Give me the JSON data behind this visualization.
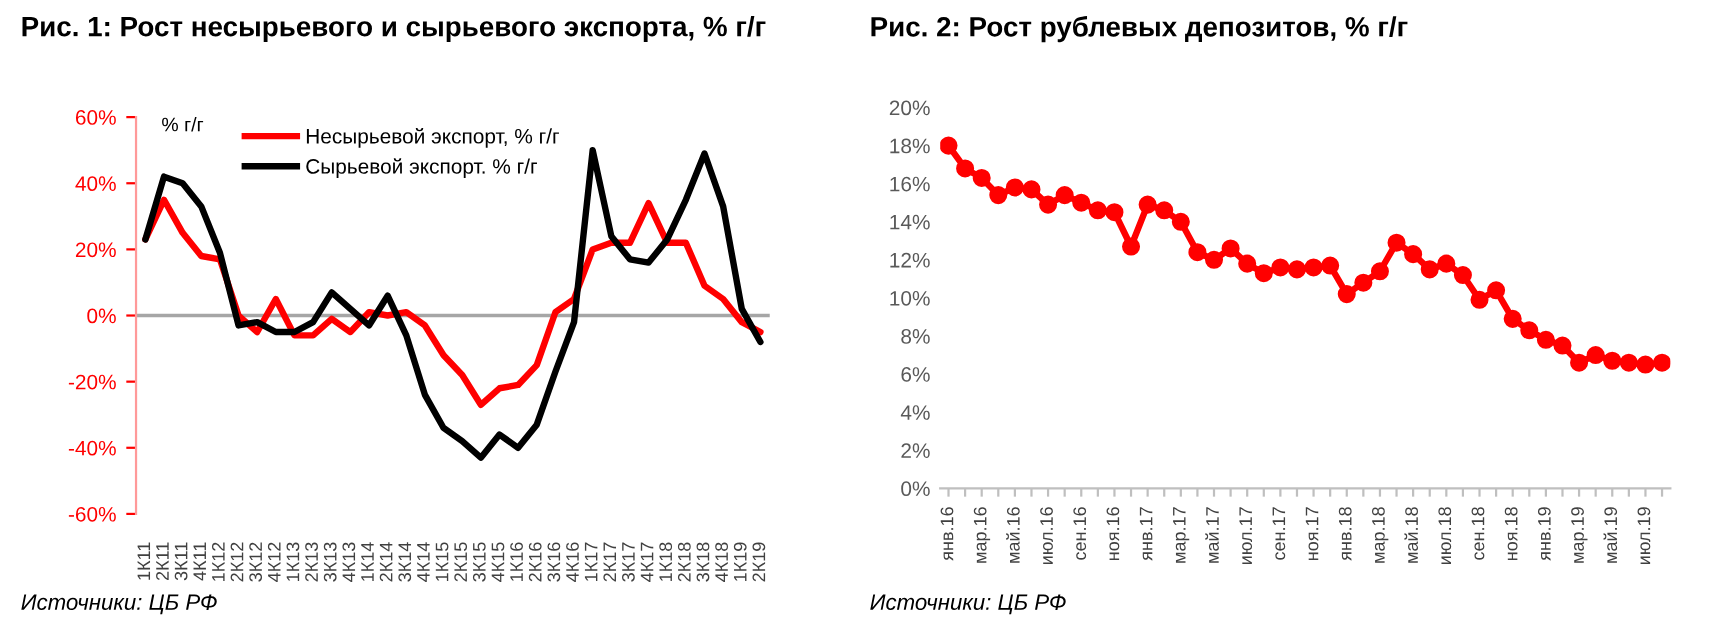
{
  "chart_data": [
    {
      "type": "line",
      "title": "Рис. 1: Рост несырьевого и сырьевого экспорта, % г/г",
      "ylabel": "% г/г",
      "categories": [
        "1К11",
        "2К11",
        "3К11",
        "4К11",
        "1К12",
        "2К12",
        "3К12",
        "4К12",
        "1К13",
        "2К13",
        "3К13",
        "4К13",
        "1К14",
        "2К14",
        "3К14",
        "4К14",
        "1К15",
        "2К15",
        "3К15",
        "4К15",
        "1К16",
        "2К16",
        "3К16",
        "4К16",
        "1К17",
        "2К17",
        "3К17",
        "4К17",
        "1К18",
        "2К18",
        "3К18",
        "4К18",
        "1К19",
        "2К19"
      ],
      "series": [
        {
          "name": "Несырьевой экспорт, % г/г",
          "color": "#ff0000",
          "values": [
            23,
            35,
            25,
            18,
            17,
            0,
            -5,
            5,
            -6,
            -6,
            -1,
            -5,
            1,
            0,
            1,
            -3,
            -12,
            -18,
            -27,
            -22,
            -21,
            -15,
            1,
            5,
            20,
            22,
            22,
            34,
            22,
            22,
            9,
            5,
            -2,
            -5
          ]
        },
        {
          "name": "Сырьевой экспорт. % г/г",
          "color": "#000000",
          "values": [
            23,
            42,
            40,
            33,
            19,
            -3,
            -2,
            -5,
            -5,
            -2,
            7,
            2,
            -3,
            6,
            -6,
            -24,
            -34,
            -38,
            -43,
            -36,
            -40,
            -33,
            -17,
            -2,
            50,
            24,
            17,
            16,
            23,
            35,
            49,
            33,
            2,
            -8
          ]
        }
      ],
      "ylim": [
        -60,
        60
      ],
      "yticks": [
        {
          "value": -60,
          "label": "-60%"
        },
        {
          "value": -40,
          "label": "-40%"
        },
        {
          "value": -20,
          "label": "-20%"
        },
        {
          "value": 0,
          "label": "0%"
        },
        {
          "value": 20,
          "label": "20%"
        },
        {
          "value": 40,
          "label": "40%"
        },
        {
          "value": 60,
          "label": "60%"
        }
      ],
      "ref_lines": [
        {
          "axis": "y",
          "value": 0,
          "color": "#a6a6a6"
        }
      ],
      "grid": false,
      "legend": "top",
      "marker": "none",
      "line_style": "solid",
      "annotations": [
        "Источники: ЦБ РФ"
      ]
    },
    {
      "type": "line",
      "title": "Рис. 2: Рост рублевых депозитов, % г/г",
      "categories": [
        "янв.16",
        null,
        "мар.16",
        null,
        "май.16",
        null,
        "июл.16",
        null,
        "сен.16",
        null,
        "ноя.16",
        null,
        "янв.17",
        null,
        "мар.17",
        null,
        "май.17",
        null,
        "июл.17",
        null,
        "сен.17",
        null,
        "ноя.17",
        null,
        "янв.18",
        null,
        "мар.18",
        null,
        "май.18",
        null,
        "июл.18",
        null,
        "сен.18",
        null,
        "ноя.18",
        null,
        "янв.19",
        null,
        "мар.19",
        null,
        "май.19",
        null,
        "июл.19",
        null
      ],
      "series": [
        {
          "color": "#ff0000",
          "values": [
            18.0,
            16.8,
            16.3,
            15.4,
            15.8,
            15.7,
            14.9,
            15.4,
            15.0,
            14.6,
            14.5,
            12.7,
            14.9,
            14.6,
            14.0,
            12.4,
            12.0,
            12.6,
            11.8,
            11.3,
            11.6,
            11.5,
            11.6,
            11.7,
            10.2,
            10.8,
            11.4,
            12.9,
            12.3,
            11.5,
            11.8,
            11.2,
            9.9,
            10.4,
            8.9,
            8.3,
            7.8,
            7.5,
            6.6,
            7.0,
            6.7,
            6.6,
            6.5,
            6.6
          ]
        }
      ],
      "ylim": [
        0,
        20
      ],
      "yticks": [
        {
          "value": 0,
          "label": "0%"
        },
        {
          "value": 2,
          "label": "2%"
        },
        {
          "value": 4,
          "label": "4%"
        },
        {
          "value": 6,
          "label": "6%"
        },
        {
          "value": 8,
          "label": "8%"
        },
        {
          "value": 10,
          "label": "10%"
        },
        {
          "value": 12,
          "label": "12%"
        },
        {
          "value": 14,
          "label": "14%"
        },
        {
          "value": 16,
          "label": "16%"
        },
        {
          "value": 18,
          "label": "18%"
        },
        {
          "value": 20,
          "label": "20%"
        }
      ],
      "grid": false,
      "legend": false,
      "marker": "circle",
      "line_style": "solid",
      "annotations": [
        "Источники: ЦБ РФ"
      ]
    }
  ]
}
